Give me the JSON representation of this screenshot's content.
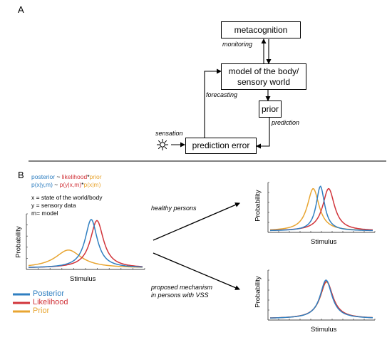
{
  "panel_a": {
    "letter": "A",
    "boxes": {
      "metacognition": "metacognition",
      "model_line1": "model of the body/",
      "model_line2": "sensory world",
      "prior": "prior",
      "prediction_error": "prediction error"
    },
    "arrow_labels": {
      "monitoring": "monitoring",
      "forecasting": "forecasting",
      "prediction": "prediction",
      "sensation": "sensation"
    }
  },
  "panel_b": {
    "letter": "B",
    "formula": {
      "line1": [
        {
          "text": "posterior",
          "color": "#2f7fc1"
        },
        {
          "text": " ~ ",
          "color": "#000000"
        },
        {
          "text": "likelihood",
          "color": "#d1343a"
        },
        {
          "text": "*",
          "color": "#000000"
        },
        {
          "text": "prior",
          "color": "#e8a531"
        }
      ],
      "line2": [
        {
          "text": "p(x|y,m)",
          "color": "#2f7fc1"
        },
        {
          "text": " ~ ",
          "color": "#000000"
        },
        {
          "text": "p(y|x,m)",
          "color": "#d1343a"
        },
        {
          "text": "*",
          "color": "#000000"
        },
        {
          "text": "p(x|m)",
          "color": "#e8a531"
        }
      ]
    },
    "definitions": {
      "x": "x = state of the world/body",
      "y": "y = sensory data",
      "m": "m= model"
    },
    "arrow_labels": {
      "healthy": "healthy persons",
      "vss_line1": "proposed mechanism",
      "vss_line2": "in persons with VSS"
    },
    "axis_labels": {
      "y": "Probability",
      "x": "Stimulus"
    },
    "legend": [
      {
        "label": "Posterior",
        "color": "#2f7fc1"
      },
      {
        "label": "Likelihood",
        "color": "#d1343a"
      },
      {
        "label": "Prior",
        "color": "#e8a531"
      }
    ],
    "colors": {
      "posterior": "#2f7fc1",
      "likelihood": "#d1343a",
      "prior": "#e8a531"
    },
    "plots": [
      {
        "id": "main",
        "curves": [
          {
            "role": "prior",
            "mu": 0.35,
            "gamma": 0.14,
            "h": 0.34
          },
          {
            "role": "likelihood",
            "mu": 0.6,
            "gamma": 0.07,
            "h": 0.9
          },
          {
            "role": "posterior",
            "mu": 0.55,
            "gamma": 0.065,
            "h": 0.92
          }
        ]
      },
      {
        "id": "healthy",
        "curves": [
          {
            "role": "prior",
            "mu": 0.42,
            "gamma": 0.07,
            "h": 0.9
          },
          {
            "role": "likelihood",
            "mu": 0.57,
            "gamma": 0.07,
            "h": 0.9
          },
          {
            "role": "posterior",
            "mu": 0.49,
            "gamma": 0.05,
            "h": 0.95
          }
        ]
      },
      {
        "id": "vss",
        "curves": [
          {
            "role": "prior",
            "mu": 0.55,
            "gamma": 0.075,
            "h": 0.78
          },
          {
            "role": "likelihood",
            "mu": 0.55,
            "gamma": 0.075,
            "h": 0.79
          },
          {
            "role": "posterior",
            "mu": 0.545,
            "gamma": 0.07,
            "h": 0.82
          }
        ]
      }
    ]
  }
}
